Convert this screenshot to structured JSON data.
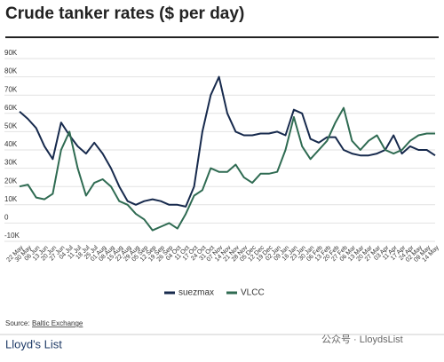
{
  "chart_data": {
    "type": "line",
    "title": "Crude tanker rates ($ per day)",
    "categories": [
      "22 May",
      "30 May",
      "06 Jun",
      "13 Jun",
      "20 Jun",
      "27 Jun",
      "04 Jul",
      "11 Jul",
      "18 Jul",
      "25 Jul",
      "01 Aug",
      "08 Aug",
      "15 Aug",
      "22 Aug",
      "29 Aug",
      "05 Sep",
      "12 Sep",
      "19 Sep",
      "26 Sep",
      "04 Oct",
      "11 Oct",
      "17 Oct",
      "24 Oct",
      "31 Oct",
      "07 Nov",
      "14 Nov",
      "21 Nov",
      "28 Nov",
      "05 Dec",
      "12 Dec",
      "19 Dec",
      "02 Jan",
      "09 Jan",
      "16 Jan",
      "23 Jan",
      "30 Jan",
      "06 Feb",
      "13 Feb",
      "20 Feb",
      "27 Feb",
      "06 Mar",
      "13 Mar",
      "20 Mar",
      "27 Mar",
      "03 Apr",
      "11 Apr",
      "17 Apr",
      "24 Apr",
      "02 May",
      "09 May",
      "14 May"
    ],
    "series": [
      {
        "name": "suezmax",
        "color": "#172a4d",
        "values": [
          61000,
          57000,
          52000,
          42000,
          35000,
          55000,
          48000,
          42000,
          38000,
          44000,
          38000,
          30000,
          20000,
          12000,
          10000,
          12000,
          13000,
          12000,
          10000,
          10000,
          9000,
          20000,
          50000,
          70000,
          80000,
          60000,
          50000,
          48000,
          48000,
          49000,
          49000,
          50000,
          48000,
          62000,
          60000,
          46000,
          44000,
          47000,
          47000,
          40000,
          38000,
          37000,
          37000,
          38000,
          40000,
          48000,
          38000,
          42000,
          40000,
          40000,
          37000
        ]
      },
      {
        "name": "VLCC",
        "color": "#2f6b52",
        "values": [
          20000,
          21000,
          14000,
          13000,
          16000,
          40000,
          50000,
          30000,
          15000,
          22000,
          24000,
          20000,
          12000,
          10000,
          5000,
          2000,
          -4000,
          -2000,
          0,
          -3000,
          5000,
          15000,
          18000,
          30000,
          28000,
          28000,
          32000,
          25000,
          22000,
          27000,
          27000,
          28000,
          40000,
          58000,
          42000,
          35000,
          40000,
          45000,
          55000,
          63000,
          45000,
          40000,
          45000,
          48000,
          40000,
          38000,
          40000,
          45000,
          48000,
          49000,
          49000
        ]
      }
    ],
    "ylim": [
      -10000,
      90000
    ],
    "yticks": [
      {
        "value": -10000,
        "label": "-10K"
      },
      {
        "value": 0,
        "label": "0"
      },
      {
        "value": 10000,
        "label": "10K"
      },
      {
        "value": 20000,
        "label": "20K"
      },
      {
        "value": 30000,
        "label": "30K"
      },
      {
        "value": 40000,
        "label": "40K"
      },
      {
        "value": 50000,
        "label": "50K"
      },
      {
        "value": 60000,
        "label": "60K"
      },
      {
        "value": 70000,
        "label": "70K"
      },
      {
        "value": 80000,
        "label": "80K"
      },
      {
        "value": 90000,
        "label": "90K"
      }
    ],
    "grid": true,
    "source_label": "Source:",
    "source": "Baltic Exchange",
    "brand": "Lloyd's List",
    "watermark": "公众号 · LloydsList"
  }
}
